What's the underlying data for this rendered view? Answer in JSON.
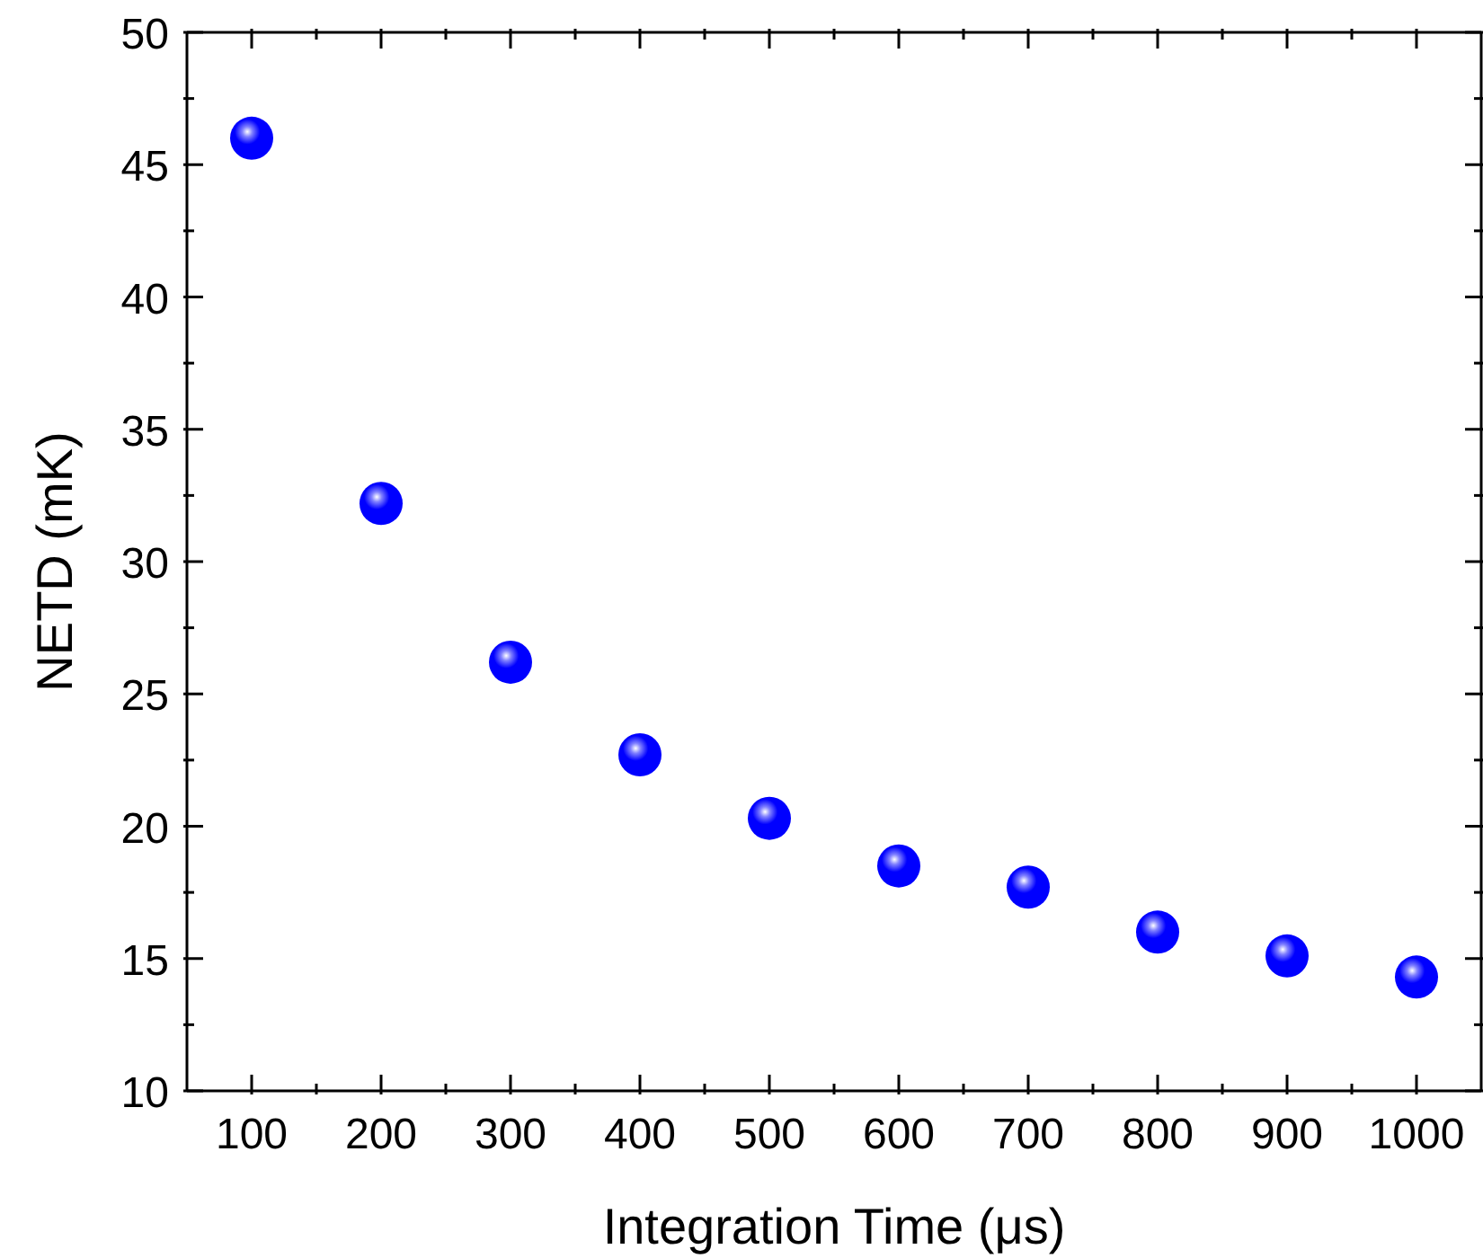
{
  "chart_data": {
    "type": "scatter",
    "xlabel": "Integration Time (μs)",
    "ylabel": "NETD (mK)",
    "x": [
      100,
      200,
      300,
      400,
      500,
      600,
      700,
      800,
      900,
      1000
    ],
    "values": [
      46.0,
      32.2,
      26.2,
      22.7,
      20.3,
      18.5,
      17.7,
      16.0,
      15.1,
      14.3
    ],
    "color": "#0000ff",
    "marker": "circle",
    "xlim": [
      50,
      1050
    ],
    "xticks": [
      100,
      {
        "value": 150,
        "label": null
      },
      200,
      {
        "value": 250,
        "label": null
      },
      300,
      {
        "value": 350,
        "label": null
      },
      400,
      {
        "value": 450,
        "label": null
      },
      500,
      {
        "value": 550,
        "label": null
      },
      600,
      {
        "value": 650,
        "label": null
      },
      700,
      {
        "value": 750,
        "label": null
      },
      800,
      {
        "value": 850,
        "label": null
      },
      900,
      {
        "value": 950,
        "label": null
      },
      1000
    ],
    "ylim": [
      10,
      50
    ],
    "yticks": [
      10,
      {
        "value": 12.5,
        "label": null
      },
      15,
      {
        "value": 17.5,
        "label": null
      },
      20,
      {
        "value": 22.5,
        "label": null
      },
      25,
      {
        "value": 27.5,
        "label": null
      },
      30,
      {
        "value": 32.5,
        "label": null
      },
      35,
      {
        "value": 37.5,
        "label": null
      },
      40,
      {
        "value": 42.5,
        "label": null
      },
      45,
      {
        "value": 47.5,
        "label": null
      },
      50
    ]
  }
}
